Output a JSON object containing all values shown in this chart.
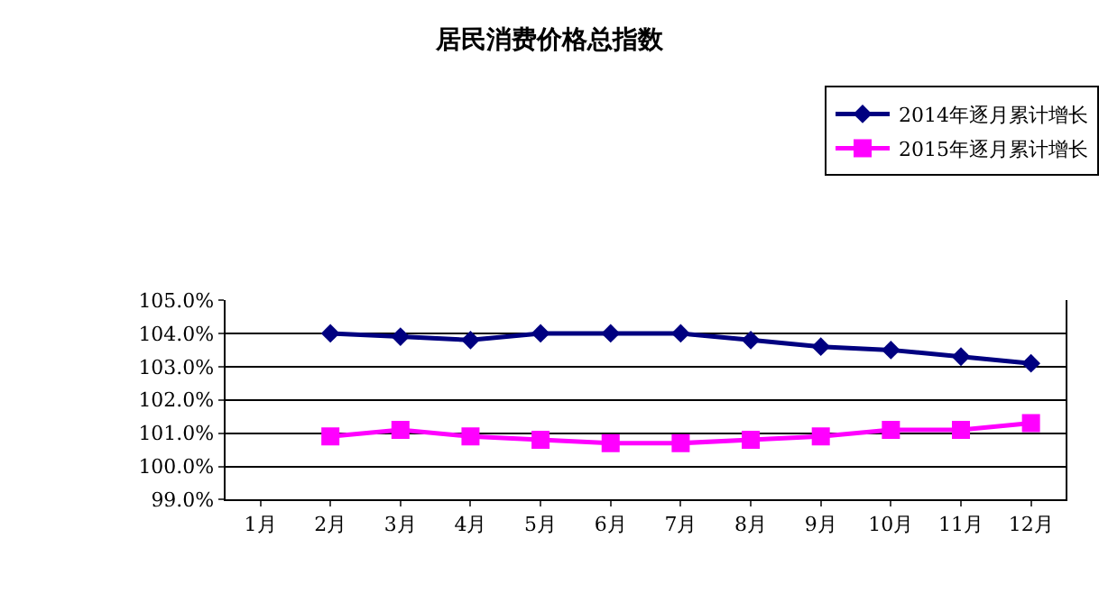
{
  "chart_data": {
    "type": "line",
    "title": "居民消费价格总指数",
    "categories": [
      "1月",
      "2月",
      "3月",
      "4月",
      "5月",
      "6月",
      "7月",
      "8月",
      "9月",
      "10月",
      "11月",
      "12月"
    ],
    "series": [
      {
        "name": "2014年逐月累计增长",
        "color": "#000080",
        "marker": "diamond",
        "values": [
          null,
          104.0,
          103.9,
          103.8,
          104.0,
          104.0,
          104.0,
          103.8,
          103.6,
          103.5,
          103.3,
          103.1
        ]
      },
      {
        "name": "2015年逐月累计增长",
        "color": "#ff00ff",
        "marker": "square",
        "values": [
          null,
          100.9,
          101.1,
          100.9,
          100.8,
          100.7,
          100.7,
          100.8,
          100.9,
          101.1,
          101.1,
          101.3
        ]
      }
    ],
    "ylim": [
      99,
      105
    ],
    "yticks": [
      {
        "value": 99,
        "label": "99.0%"
      },
      {
        "value": 100,
        "label": "100.0%"
      },
      {
        "value": 101,
        "label": "101.0%"
      },
      {
        "value": 102,
        "label": "102.0%"
      },
      {
        "value": 103,
        "label": "103.0%"
      },
      {
        "value": 104,
        "label": "104.0%"
      },
      {
        "value": 105,
        "label": "105.0%"
      }
    ],
    "grid": "y",
    "legend": "top right",
    "line_style": "solid"
  }
}
